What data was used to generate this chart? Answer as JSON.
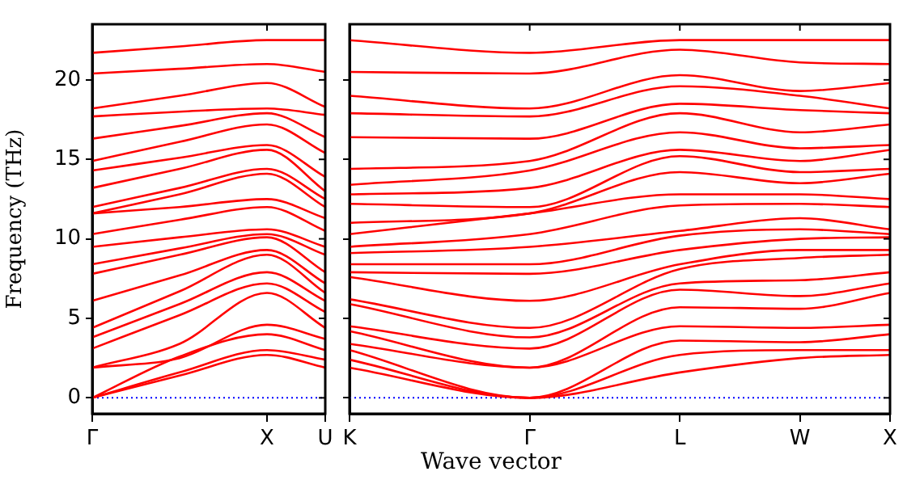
{
  "chart_data": [
    {
      "type": "line",
      "ylabel": "Frequency (THz)",
      "categories": [
        "Γ",
        null,
        null,
        null,
        null,
        null,
        "X",
        null,
        "U"
      ],
      "ylim": [
        -1,
        23.5
      ],
      "yticks": [
        0,
        5,
        10,
        15,
        20
      ],
      "legend": false,
      "grid": false,
      "marker": "none",
      "line_style": "solid",
      "ref_lines": [
        {
          "axis": "y",
          "value": 0,
          "color": "#0000ff",
          "line_style": "dotted"
        }
      ],
      "series": [
        {
          "color": "#ff0000",
          "values": [
            0,
            null,
            null,
            1.4,
            null,
            null,
            2.7,
            null,
            1.9
          ]
        },
        {
          "color": "#ff0000",
          "values": [
            0,
            null,
            null,
            1.6,
            null,
            null,
            3.0,
            null,
            2.4
          ]
        },
        {
          "color": "#ff0000",
          "values": [
            0,
            null,
            null,
            2.6,
            null,
            null,
            4.0,
            null,
            3.0
          ]
        },
        {
          "color": "#ff0000",
          "values": [
            1.9,
            null,
            null,
            2.5,
            null,
            null,
            4.6,
            null,
            3.7
          ]
        },
        {
          "color": "#ff0000",
          "values": [
            1.9,
            null,
            null,
            3.4,
            null,
            null,
            6.6,
            null,
            4.4
          ]
        },
        {
          "color": "#ff0000",
          "values": [
            3.1,
            null,
            null,
            5.2,
            null,
            null,
            7.2,
            null,
            5.4
          ]
        },
        {
          "color": "#ff0000",
          "values": [
            3.8,
            null,
            null,
            5.9,
            null,
            null,
            7.9,
            null,
            6.1
          ]
        },
        {
          "color": "#ff0000",
          "values": [
            4.4,
            null,
            null,
            6.7,
            null,
            null,
            9.0,
            null,
            6.6
          ]
        },
        {
          "color": "#ff0000",
          "values": [
            6.1,
            null,
            null,
            7.7,
            null,
            null,
            9.3,
            null,
            7.2
          ]
        },
        {
          "color": "#ff0000",
          "values": [
            7.8,
            null,
            null,
            9.0,
            null,
            null,
            10.1,
            null,
            7.9
          ]
        },
        {
          "color": "#ff0000",
          "values": [
            8.4,
            null,
            null,
            9.4,
            null,
            null,
            10.3,
            null,
            9.0
          ]
        },
        {
          "color": "#ff0000",
          "values": [
            9.5,
            null,
            null,
            10.1,
            null,
            null,
            10.6,
            null,
            9.5
          ]
        },
        {
          "color": "#ff0000",
          "values": [
            10.3,
            null,
            null,
            11.2,
            null,
            null,
            12.0,
            null,
            10.5
          ]
        },
        {
          "color": "#ff0000",
          "values": [
            11.6,
            null,
            null,
            12.0,
            null,
            null,
            12.5,
            null,
            11.3
          ]
        },
        {
          "color": "#ff0000",
          "values": [
            11.6,
            null,
            null,
            12.8,
            null,
            null,
            14.1,
            null,
            12.0
          ]
        },
        {
          "color": "#ff0000",
          "values": [
            12.0,
            null,
            null,
            13.2,
            null,
            null,
            14.4,
            null,
            12.5
          ]
        },
        {
          "color": "#ff0000",
          "values": [
            13.2,
            null,
            null,
            14.4,
            null,
            null,
            15.6,
            null,
            13.0
          ]
        },
        {
          "color": "#ff0000",
          "values": [
            14.3,
            null,
            null,
            15.1,
            null,
            null,
            15.9,
            null,
            13.9
          ]
        },
        {
          "color": "#ff0000",
          "values": [
            14.9,
            null,
            null,
            16.1,
            null,
            null,
            17.2,
            null,
            15.4
          ]
        },
        {
          "color": "#ff0000",
          "values": [
            16.3,
            null,
            null,
            17.1,
            null,
            null,
            17.9,
            null,
            16.4
          ]
        },
        {
          "color": "#ff0000",
          "values": [
            17.7,
            null,
            null,
            18.0,
            null,
            null,
            18.2,
            null,
            17.8
          ]
        },
        {
          "color": "#ff0000",
          "values": [
            18.2,
            null,
            null,
            19.0,
            null,
            null,
            19.8,
            null,
            18.3
          ]
        },
        {
          "color": "#ff0000",
          "values": [
            20.4,
            null,
            null,
            20.7,
            null,
            null,
            21.0,
            null,
            20.5
          ]
        },
        {
          "color": "#ff0000",
          "values": [
            21.7,
            null,
            null,
            22.1,
            null,
            null,
            22.5,
            null,
            22.5
          ]
        }
      ]
    },
    {
      "type": "line",
      "xlabel": "Wave vector",
      "categories": [
        "K",
        null,
        null,
        null,
        null,
        null,
        "Γ",
        null,
        null,
        null,
        null,
        "L",
        null,
        null,
        null,
        "W",
        null,
        null,
        "X"
      ],
      "ylim": [
        -1,
        23.5
      ],
      "yticks": [
        0,
        5,
        10,
        15,
        20
      ],
      "tick_labels": "x",
      "legend": false,
      "grid": false,
      "marker": "none",
      "line_style": "solid",
      "ref_lines": [
        {
          "axis": "y",
          "value": 0,
          "color": "#0000ff",
          "line_style": "dotted"
        }
      ],
      "series": [
        {
          "color": "#ff0000",
          "values": [
            1.9,
            null,
            null,
            null,
            null,
            null,
            0,
            null,
            null,
            null,
            null,
            1.6,
            null,
            null,
            null,
            2.5,
            null,
            null,
            2.7
          ]
        },
        {
          "color": "#ff0000",
          "values": [
            2.4,
            null,
            null,
            null,
            null,
            null,
            0,
            null,
            null,
            null,
            null,
            2.7,
            null,
            null,
            null,
            3.0,
            null,
            null,
            3.0
          ]
        },
        {
          "color": "#ff0000",
          "values": [
            3.0,
            null,
            null,
            null,
            null,
            null,
            0,
            null,
            null,
            null,
            null,
            3.6,
            null,
            null,
            null,
            3.5,
            null,
            null,
            4.0
          ]
        },
        {
          "color": "#ff0000",
          "values": [
            3.4,
            null,
            null,
            null,
            null,
            null,
            1.9,
            null,
            null,
            null,
            null,
            4.5,
            null,
            null,
            null,
            4.4,
            null,
            null,
            4.6
          ]
        },
        {
          "color": "#ff0000",
          "values": [
            4.2,
            null,
            null,
            null,
            null,
            null,
            1.9,
            null,
            null,
            null,
            null,
            5.7,
            null,
            null,
            null,
            5.6,
            null,
            null,
            6.6
          ]
        },
        {
          "color": "#ff0000",
          "values": [
            4.5,
            null,
            null,
            null,
            null,
            null,
            3.1,
            null,
            null,
            null,
            null,
            6.8,
            null,
            null,
            null,
            6.4,
            null,
            null,
            7.2
          ]
        },
        {
          "color": "#ff0000",
          "values": [
            5.9,
            null,
            null,
            null,
            null,
            null,
            3.8,
            null,
            null,
            null,
            null,
            7.2,
            null,
            null,
            null,
            7.4,
            null,
            null,
            7.9
          ]
        },
        {
          "color": "#ff0000",
          "values": [
            6.2,
            null,
            null,
            null,
            null,
            null,
            4.4,
            null,
            null,
            null,
            null,
            8.1,
            null,
            null,
            null,
            8.8,
            null,
            null,
            9.0
          ]
        },
        {
          "color": "#ff0000",
          "values": [
            7.6,
            null,
            null,
            null,
            null,
            null,
            6.1,
            null,
            null,
            null,
            null,
            8.4,
            null,
            null,
            null,
            9.3,
            null,
            null,
            9.3
          ]
        },
        {
          "color": "#ff0000",
          "values": [
            7.9,
            null,
            null,
            null,
            null,
            null,
            7.8,
            null,
            null,
            null,
            null,
            9.3,
            null,
            null,
            null,
            10.0,
            null,
            null,
            10.1
          ]
        },
        {
          "color": "#ff0000",
          "values": [
            8.4,
            null,
            null,
            null,
            null,
            null,
            8.4,
            null,
            null,
            null,
            null,
            10.2,
            null,
            null,
            null,
            10.6,
            null,
            null,
            10.3
          ]
        },
        {
          "color": "#ff0000",
          "values": [
            9.1,
            null,
            null,
            null,
            null,
            null,
            9.5,
            null,
            null,
            null,
            null,
            10.5,
            null,
            null,
            null,
            11.3,
            null,
            null,
            10.6
          ]
        },
        {
          "color": "#ff0000",
          "values": [
            9.5,
            null,
            null,
            null,
            null,
            null,
            10.3,
            null,
            null,
            null,
            null,
            12.1,
            null,
            null,
            null,
            12.2,
            null,
            null,
            12.0
          ]
        },
        {
          "color": "#ff0000",
          "values": [
            10.3,
            null,
            null,
            null,
            null,
            null,
            11.6,
            null,
            null,
            null,
            null,
            12.8,
            null,
            null,
            null,
            12.8,
            null,
            null,
            12.5
          ]
        },
        {
          "color": "#ff0000",
          "values": [
            11.0,
            null,
            null,
            null,
            null,
            null,
            11.6,
            null,
            null,
            null,
            null,
            14.2,
            null,
            null,
            null,
            13.5,
            null,
            null,
            14.1
          ]
        },
        {
          "color": "#ff0000",
          "values": [
            12.2,
            null,
            null,
            null,
            null,
            null,
            12.0,
            null,
            null,
            null,
            null,
            15.2,
            null,
            null,
            null,
            14.2,
            null,
            null,
            14.4
          ]
        },
        {
          "color": "#ff0000",
          "values": [
            12.8,
            null,
            null,
            null,
            null,
            null,
            13.2,
            null,
            null,
            null,
            null,
            15.6,
            null,
            null,
            null,
            14.9,
            null,
            null,
            15.6
          ]
        },
        {
          "color": "#ff0000",
          "values": [
            13.4,
            null,
            null,
            null,
            null,
            null,
            14.3,
            null,
            null,
            null,
            null,
            16.7,
            null,
            null,
            null,
            15.7,
            null,
            null,
            15.9
          ]
        },
        {
          "color": "#ff0000",
          "values": [
            14.4,
            null,
            null,
            null,
            null,
            null,
            14.9,
            null,
            null,
            null,
            null,
            17.9,
            null,
            null,
            null,
            16.7,
            null,
            null,
            17.2
          ]
        },
        {
          "color": "#ff0000",
          "values": [
            16.4,
            null,
            null,
            null,
            null,
            null,
            16.3,
            null,
            null,
            null,
            null,
            18.5,
            null,
            null,
            null,
            18.1,
            null,
            null,
            17.9
          ]
        },
        {
          "color": "#ff0000",
          "values": [
            17.9,
            null,
            null,
            null,
            null,
            null,
            17.7,
            null,
            null,
            null,
            null,
            19.6,
            null,
            null,
            null,
            19.0,
            null,
            null,
            18.2
          ]
        },
        {
          "color": "#ff0000",
          "values": [
            19.0,
            null,
            null,
            null,
            null,
            null,
            18.2,
            null,
            null,
            null,
            null,
            20.3,
            null,
            null,
            null,
            19.3,
            null,
            null,
            19.8
          ]
        },
        {
          "color": "#ff0000",
          "values": [
            20.5,
            null,
            null,
            null,
            null,
            null,
            20.4,
            null,
            null,
            null,
            null,
            21.9,
            null,
            null,
            null,
            21.1,
            null,
            null,
            21.0
          ]
        },
        {
          "color": "#ff0000",
          "values": [
            22.5,
            null,
            null,
            null,
            null,
            null,
            21.7,
            null,
            null,
            null,
            null,
            22.5,
            null,
            null,
            null,
            22.5,
            null,
            null,
            22.5
          ]
        }
      ]
    }
  ]
}
